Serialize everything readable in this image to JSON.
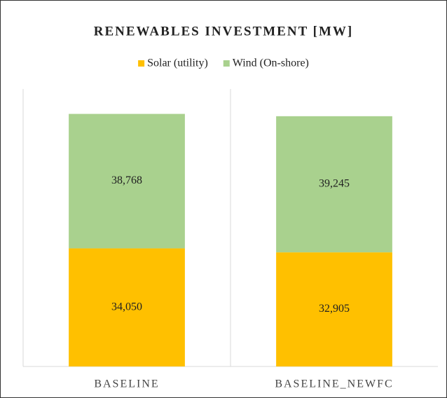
{
  "chart_data": {
    "type": "stacked_bar",
    "title": "RENEWABLES INVESTMENT [MW]",
    "categories": [
      "BASELINE",
      "BASELINE_NEWFC"
    ],
    "series": [
      {
        "name": "Solar (utility)",
        "color": "#ffc000",
        "values": [
          34050,
          32905
        ],
        "value_labels": [
          "34,050",
          "32,905"
        ]
      },
      {
        "name": "Wind (On-shore)",
        "color": "#a9d18e",
        "values": [
          38768,
          39245
        ],
        "value_labels": [
          "38,768",
          "39,245"
        ]
      }
    ],
    "ylim": [
      0,
      80000
    ],
    "legend": "top"
  }
}
